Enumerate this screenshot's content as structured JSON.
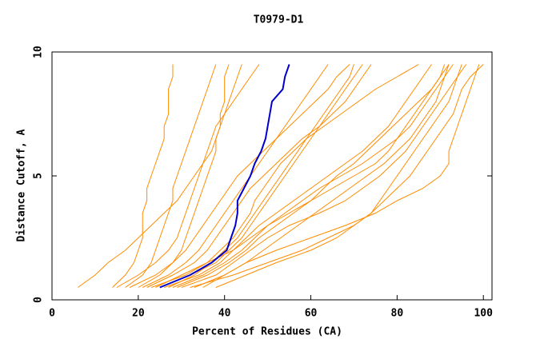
{
  "chart_data": {
    "type": "line",
    "title": "T0979-D1",
    "x_label": "Percent of Residues (CA)",
    "y_label": "Distance Cutoff, A",
    "xlim": [
      0,
      102
    ],
    "ylim": [
      0,
      10
    ],
    "xticks": [
      0,
      20,
      40,
      60,
      80,
      100
    ],
    "yticks": [
      0,
      5,
      10
    ],
    "y": [
      0.5,
      1,
      1.5,
      2,
      2.5,
      3,
      3.5,
      4,
      4.5,
      5,
      5.5,
      6,
      6.5,
      7,
      7.5,
      8,
      8.5,
      9,
      9.5
    ],
    "series": [
      {
        "color": "#ff8c00",
        "x": [
          14,
          17,
          19,
          20,
          21,
          21,
          21,
          22,
          22,
          23,
          24,
          25,
          26,
          26,
          27,
          27,
          27,
          28,
          28
        ]
      },
      {
        "color": "#ff8c00",
        "x": [
          17,
          21,
          23,
          24,
          25,
          26,
          27,
          28,
          28,
          29,
          30,
          31,
          32,
          33,
          34,
          35,
          36,
          37,
          38
        ]
      },
      {
        "color": "#ff8c00",
        "x": [
          20,
          25,
          28,
          30,
          31,
          32,
          33,
          34,
          35,
          36,
          37,
          38,
          38,
          39,
          39,
          40,
          40,
          40,
          41
        ]
      },
      {
        "color": "#ff8c00",
        "x": [
          6,
          10,
          13,
          17,
          20,
          23,
          26,
          29,
          31,
          33,
          35,
          37,
          38,
          39,
          40,
          41,
          42,
          43,
          44
        ]
      },
      {
        "color": "#ff8c00",
        "x": [
          22,
          28,
          33,
          36,
          38,
          40,
          42,
          44,
          46,
          49,
          52,
          55,
          58,
          62,
          65,
          68,
          70,
          72,
          74
        ]
      },
      {
        "color": "#ff8c00",
        "x": [
          28,
          35,
          40,
          44,
          47,
          50,
          55,
          60,
          65,
          70,
          75,
          78,
          80,
          82,
          84,
          86,
          88,
          90,
          92
        ]
      },
      {
        "color": "#ff8c00",
        "x": [
          30,
          38,
          42,
          46,
          50,
          55,
          62,
          68,
          72,
          76,
          79,
          82,
          84,
          86,
          88,
          90,
          92,
          94,
          96
        ]
      },
      {
        "color": "#ff8c00",
        "x": [
          35,
          40,
          45,
          52,
          60,
          68,
          75,
          80,
          86,
          90,
          92,
          92,
          93,
          94,
          95,
          96,
          97,
          98,
          99
        ]
      },
      {
        "color": "#ff8c00",
        "x": [
          38,
          45,
          52,
          60,
          66,
          70,
          74,
          77,
          80,
          83,
          85,
          87,
          89,
          91,
          93,
          94,
          95,
          97,
          100
        ]
      },
      {
        "color": "#ff8c00",
        "x": [
          24,
          30,
          36,
          42,
          46,
          50,
          54,
          58,
          62,
          67,
          72,
          76,
          80,
          83,
          85,
          87,
          89,
          91,
          93
        ]
      },
      {
        "color": "#ff8c00",
        "x": [
          32,
          42,
          50,
          58,
          64,
          70,
          74,
          76,
          78,
          80,
          82,
          84,
          86,
          88,
          90,
          92,
          93,
          94,
          95
        ]
      },
      {
        "color": "#ff8c00",
        "x": [
          25,
          32,
          38,
          41,
          44,
          46,
          48,
          50,
          52,
          54,
          56,
          58,
          60,
          62,
          64,
          66,
          68,
          70,
          72
        ]
      },
      {
        "color": "#ff8c00",
        "x": [
          18,
          24,
          28,
          31,
          33,
          35,
          37,
          39,
          41,
          43,
          46,
          49,
          52,
          54,
          56,
          58,
          60,
          62,
          64
        ]
      },
      {
        "color": "#ff8c00",
        "x": [
          26,
          34,
          39,
          42,
          45,
          48,
          52,
          56,
          60,
          64,
          68,
          72,
          75,
          78,
          80,
          82,
          84,
          86,
          88
        ]
      },
      {
        "color": "#ff8c00",
        "x": [
          21,
          27,
          31,
          34,
          36,
          38,
          40,
          42,
          44,
          46,
          48,
          50,
          52,
          55,
          58,
          61,
          64,
          66,
          69
        ]
      },
      {
        "color": "#ff8c00",
        "x": [
          15,
          20,
          24,
          27,
          29,
          30,
          31,
          32,
          33,
          34,
          35,
          36,
          37,
          38,
          40,
          42,
          44,
          46,
          48
        ]
      },
      {
        "color": "#ff8c00",
        "x": [
          23,
          31,
          36,
          39,
          42,
          44,
          46,
          47,
          49,
          51,
          53,
          56,
          59,
          63,
          67,
          71,
          75,
          80,
          85
        ]
      },
      {
        "color": "#ff8c00",
        "x": [
          29,
          36,
          41,
          45,
          48,
          52,
          56,
          60,
          63,
          66,
          70,
          73,
          76,
          79,
          82,
          85,
          88,
          90,
          91
        ]
      },
      {
        "color": "#ff8c00",
        "x": [
          27,
          33,
          37,
          40,
          43,
          45,
          47,
          49,
          51,
          53,
          55,
          57,
          59,
          61,
          63,
          65,
          67,
          69,
          70
        ]
      },
      {
        "color": "#ff8c00",
        "x": [
          33,
          40,
          45,
          49,
          53,
          57,
          61,
          65,
          69,
          73,
          77,
          80,
          83,
          85,
          87,
          89,
          90,
          91,
          92
        ]
      },
      {
        "color": "#0000cc",
        "x": [
          25,
          32,
          37,
          40.5,
          41.5,
          42.5,
          43,
          43,
          44.5,
          46,
          47,
          48.5,
          49.5,
          50,
          50.5,
          51,
          53.5,
          54,
          55
        ]
      }
    ]
  }
}
